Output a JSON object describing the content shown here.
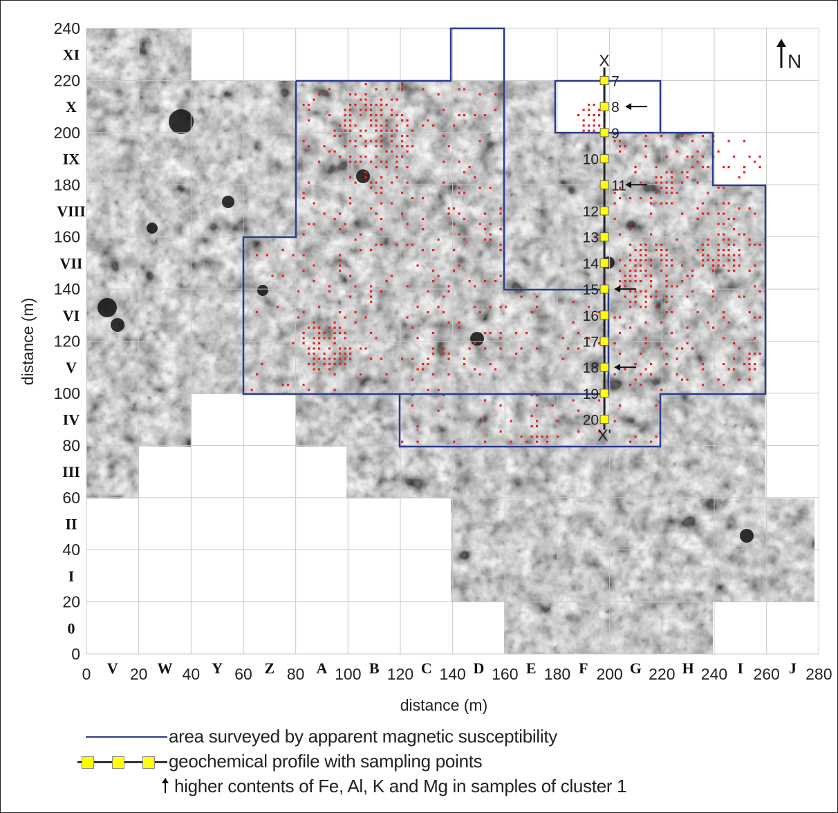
{
  "map": {
    "north_label": "N",
    "x_axis": {
      "title": "distance (m)",
      "ticks": [
        "0",
        "20",
        "40",
        "60",
        "80",
        "100",
        "120",
        "140",
        "160",
        "180",
        "200",
        "220",
        "240",
        "260",
        "280"
      ],
      "letters": [
        "V",
        "W",
        "Y",
        "Z",
        "A",
        "B",
        "C",
        "D",
        "E",
        "F",
        "G",
        "H",
        "I",
        "J"
      ]
    },
    "y_axis": {
      "title": "distance (m)",
      "ticks": [
        "0",
        "20",
        "40",
        "60",
        "80",
        "100",
        "120",
        "140",
        "160",
        "180",
        "200",
        "220",
        "240"
      ],
      "numerals": [
        "0",
        "I",
        "II",
        "III",
        "IV",
        "V",
        "VI",
        "VII",
        "VIII",
        "IX",
        "X",
        "XI"
      ]
    },
    "profile": {
      "end_labels": [
        "X",
        "X'"
      ],
      "x_m": 198,
      "points": [
        {
          "label": "7",
          "y_m": 220
        },
        {
          "label": "8",
          "y_m": 210
        },
        {
          "label": "9",
          "y_m": 200
        },
        {
          "label": "10",
          "y_m": 190
        },
        {
          "label": "11",
          "y_m": 180
        },
        {
          "label": "12",
          "y_m": 170
        },
        {
          "label": "13",
          "y_m": 160
        },
        {
          "label": "14",
          "y_m": 150
        },
        {
          "label": "15",
          "y_m": 140
        },
        {
          "label": "16",
          "y_m": 130
        },
        {
          "label": "17",
          "y_m": 120
        },
        {
          "label": "18",
          "y_m": 110
        },
        {
          "label": "19",
          "y_m": 100
        },
        {
          "label": "20",
          "y_m": 90
        }
      ],
      "arrow_points": [
        "8",
        "11",
        "15",
        "18"
      ]
    },
    "colors": {
      "survey_boundary": "#2b3a8f",
      "profile_point": "#ffff00",
      "anomaly": "#e8231f",
      "background_magnetic": "#9a9a9a"
    }
  },
  "legend": {
    "survey": "area surveyed by apparent magnetic susceptibility",
    "profile": "geochemical profile with sampling points",
    "arrow": "higher contents of Fe, Al, K and Mg in samples of cluster 1"
  }
}
